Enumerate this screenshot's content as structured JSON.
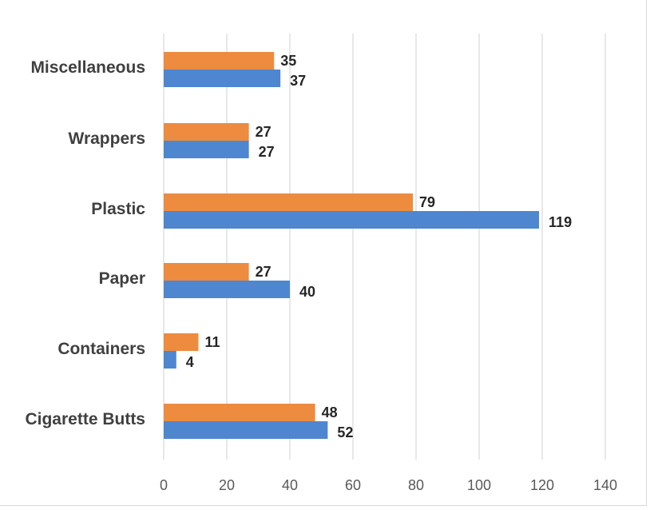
{
  "chart_data": {
    "type": "bar",
    "orientation": "horizontal",
    "categories": [
      "Miscellaneous",
      "Wrappers",
      "Plastic",
      "Paper",
      "Containers",
      "Cigarette Butts"
    ],
    "series": [
      {
        "values": [
          35,
          27,
          79,
          27,
          11,
          48
        ],
        "color": "#ED8B3F"
      },
      {
        "values": [
          37,
          27,
          119,
          40,
          4,
          52
        ],
        "color": "#4E86D0"
      }
    ],
    "x_ticks": [
      0,
      20,
      40,
      60,
      80,
      100,
      120,
      140
    ],
    "xlim": [
      0,
      140
    ],
    "grid": "vertical",
    "legend": "none",
    "gridline_color": "#d9d9d9"
  }
}
